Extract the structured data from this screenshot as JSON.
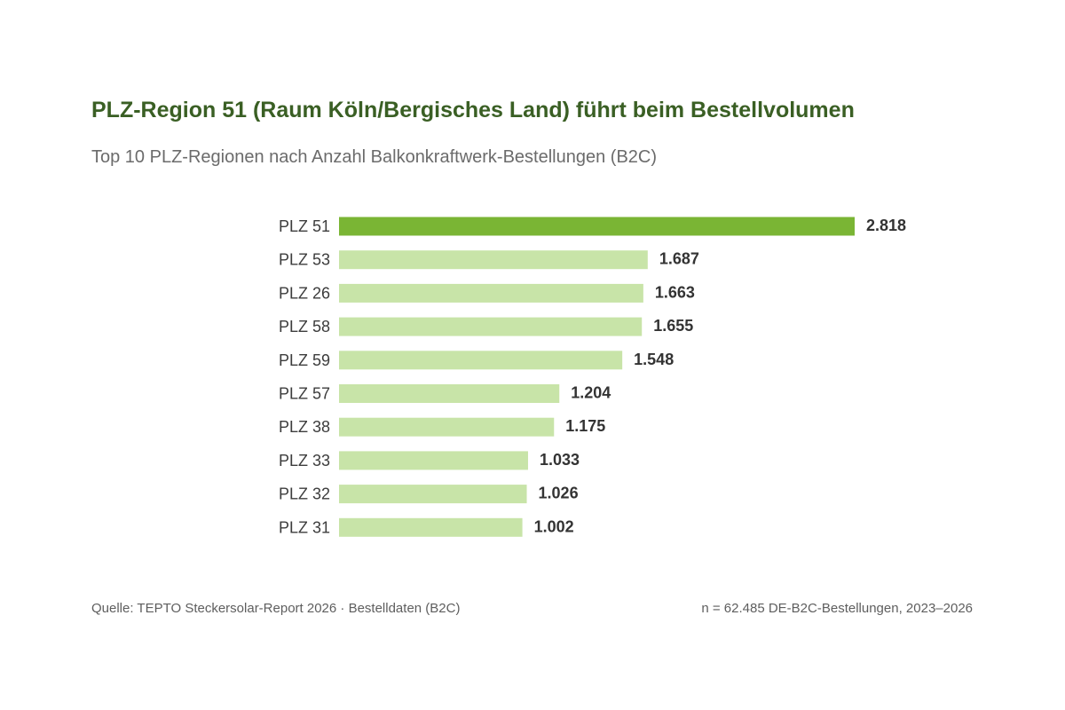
{
  "chart_data": {
    "type": "bar",
    "orientation": "horizontal",
    "title": "PLZ-Region 51 (Raum Köln/Bergisches Land) führt beim Bestellvolumen",
    "subtitle": "Top 10 PLZ-Regionen nach Anzahl Balkonkraftwerk-Bestellungen (B2C)",
    "categories": [
      "PLZ 51",
      "PLZ 53",
      "PLZ 26",
      "PLZ 58",
      "PLZ 59",
      "PLZ 57",
      "PLZ 38",
      "PLZ 33",
      "PLZ 32",
      "PLZ 31"
    ],
    "values": [
      2818,
      1687,
      1663,
      1655,
      1548,
      1204,
      1175,
      1033,
      1026,
      1002
    ],
    "value_labels": [
      "2.818",
      "1.687",
      "1.663",
      "1.655",
      "1.548",
      "1.204",
      "1.175",
      "1.033",
      "1.026",
      "1.002"
    ],
    "highlight_index": 0,
    "xlim": [
      0,
      2818
    ],
    "grid": false,
    "legend": "none",
    "colors": {
      "highlight": "#7ab534",
      "bar": "#c8e4a8",
      "title": "#3a5f24"
    }
  },
  "footer": {
    "source": "Quelle: TEPTO Steckersolar-Report 2026 · Bestelldaten (B2C)",
    "note": "n = 62.485 DE-B2C-Bestellungen, 2023–2026"
  }
}
